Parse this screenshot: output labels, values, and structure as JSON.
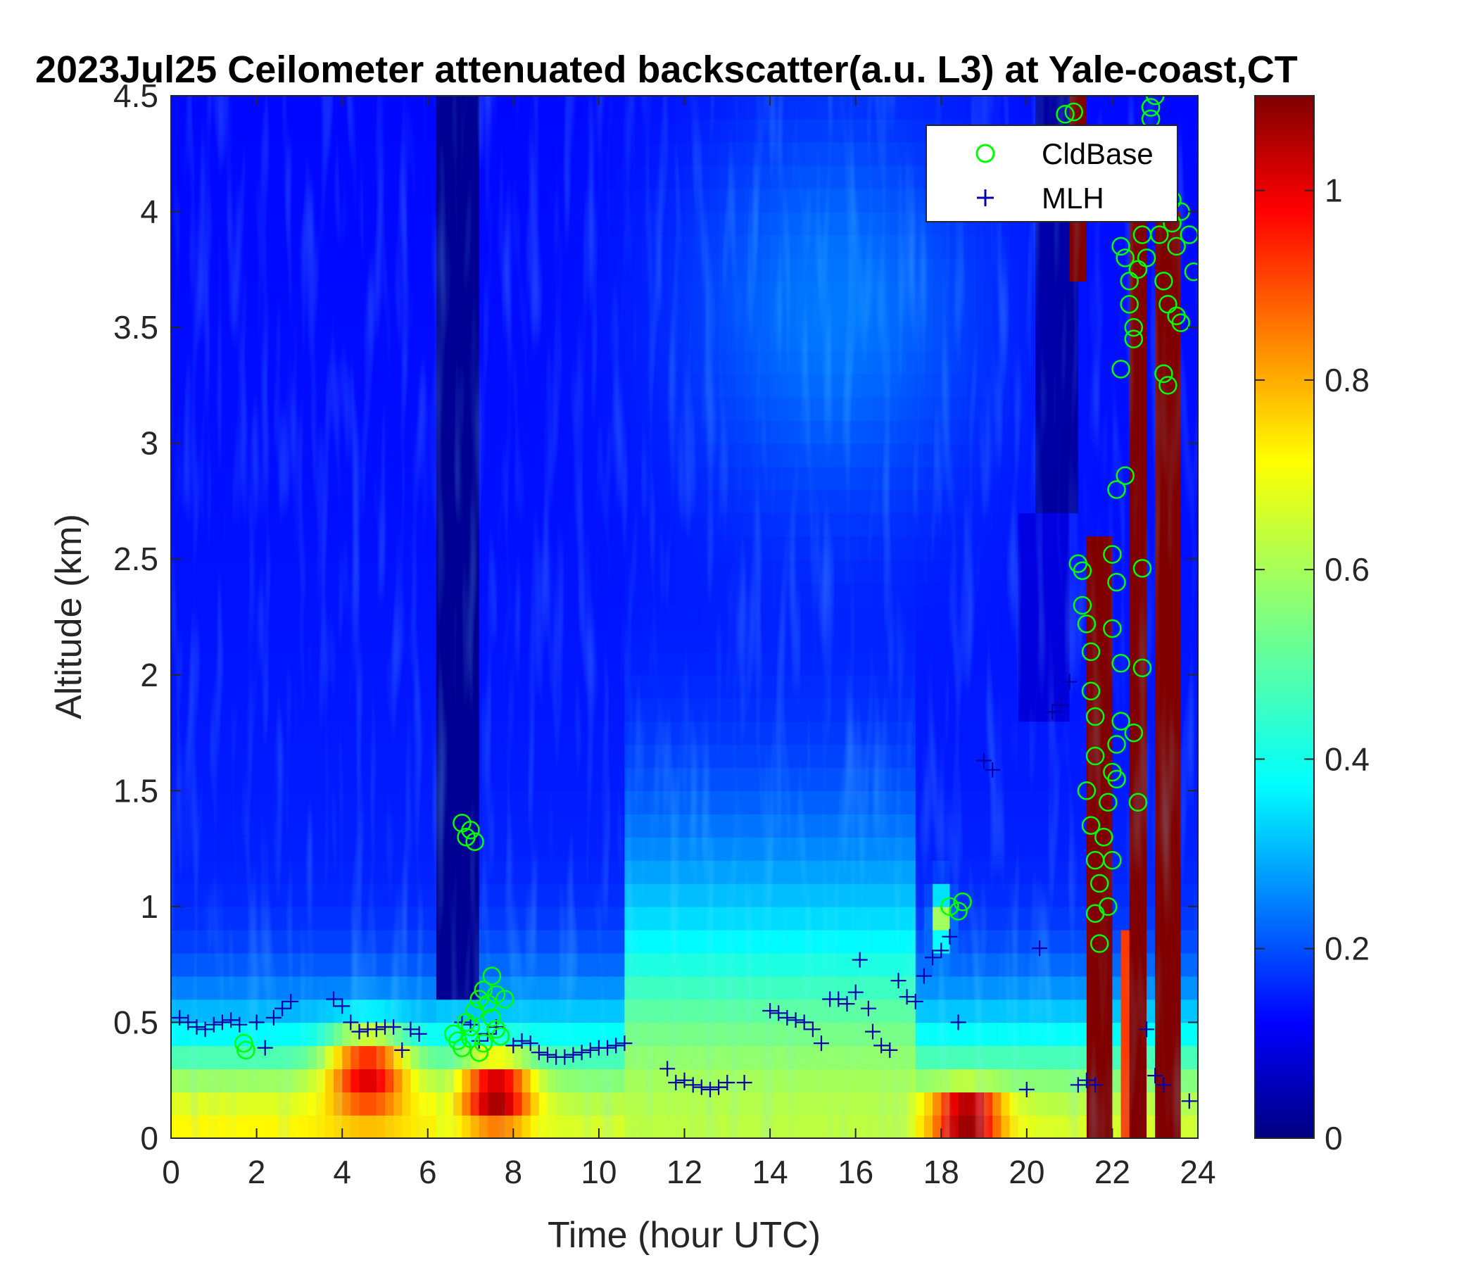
{
  "chart_data": {
    "type": "heatmap",
    "title": "2023Jul25 Ceilometer attenuated backscatter(a.u. L3) at Yale-coast,CT",
    "xlabel": "Time (hour UTC)",
    "ylabel": "Altitude (km)",
    "xlim": [
      0,
      24
    ],
    "ylim": [
      0,
      4.5
    ],
    "x_ticks": [
      "0",
      "2",
      "4",
      "6",
      "8",
      "10",
      "12",
      "14",
      "16",
      "18",
      "20",
      "22",
      "24"
    ],
    "y_ticks": [
      "0",
      "0.5",
      "1",
      "1.5",
      "2",
      "2.5",
      "3",
      "3.5",
      "4",
      "4.5"
    ],
    "colorbar": {
      "colormap": "jet",
      "range": [
        0,
        1.1
      ],
      "ticks": [
        "0",
        "0.2",
        "0.4",
        "0.6",
        "0.8",
        "1"
      ]
    },
    "legend": {
      "position": "top-right",
      "entries": [
        {
          "label": "CldBase",
          "marker": "circle",
          "color": "#00ff00"
        },
        {
          "label": "MLH",
          "marker": "plus",
          "color": "#0000aa"
        }
      ]
    },
    "series": [
      {
        "name": "MLH",
        "marker": "plus",
        "points": [
          [
            0.2,
            0.52
          ],
          [
            0.4,
            0.5
          ],
          [
            0.6,
            0.48
          ],
          [
            0.8,
            0.47
          ],
          [
            1.0,
            0.49
          ],
          [
            1.2,
            0.5
          ],
          [
            1.4,
            0.51
          ],
          [
            1.6,
            0.49
          ],
          [
            2.0,
            0.5
          ],
          [
            2.2,
            0.39
          ],
          [
            2.4,
            0.52
          ],
          [
            2.6,
            0.56
          ],
          [
            2.8,
            0.59
          ],
          [
            3.8,
            0.6
          ],
          [
            4.0,
            0.57
          ],
          [
            4.2,
            0.5
          ],
          [
            4.4,
            0.46
          ],
          [
            4.6,
            0.47
          ],
          [
            4.8,
            0.47
          ],
          [
            5.0,
            0.48
          ],
          [
            5.2,
            0.48
          ],
          [
            5.4,
            0.38
          ],
          [
            5.6,
            0.47
          ],
          [
            5.8,
            0.45
          ],
          [
            6.8,
            0.5
          ],
          [
            7.0,
            0.49
          ],
          [
            7.2,
            0.42
          ],
          [
            7.4,
            0.45
          ],
          [
            7.6,
            0.48
          ],
          [
            8.0,
            0.4
          ],
          [
            8.2,
            0.42
          ],
          [
            8.4,
            0.41
          ],
          [
            8.6,
            0.37
          ],
          [
            8.8,
            0.36
          ],
          [
            9.0,
            0.35
          ],
          [
            9.2,
            0.35
          ],
          [
            9.4,
            0.36
          ],
          [
            9.6,
            0.37
          ],
          [
            9.8,
            0.38
          ],
          [
            10.0,
            0.39
          ],
          [
            10.2,
            0.39
          ],
          [
            10.4,
            0.4
          ],
          [
            10.6,
            0.41
          ],
          [
            11.6,
            0.3
          ],
          [
            11.8,
            0.24
          ],
          [
            12.0,
            0.25
          ],
          [
            12.2,
            0.23
          ],
          [
            12.4,
            0.22
          ],
          [
            12.6,
            0.21
          ],
          [
            12.8,
            0.22
          ],
          [
            13.0,
            0.24
          ],
          [
            13.4,
            0.24
          ],
          [
            14.0,
            0.55
          ],
          [
            14.2,
            0.54
          ],
          [
            14.4,
            0.52
          ],
          [
            14.6,
            0.51
          ],
          [
            14.8,
            0.5
          ],
          [
            15.0,
            0.47
          ],
          [
            15.2,
            0.41
          ],
          [
            15.4,
            0.6
          ],
          [
            15.6,
            0.6
          ],
          [
            15.8,
            0.58
          ],
          [
            16.0,
            0.63
          ],
          [
            16.1,
            0.77
          ],
          [
            16.3,
            0.56
          ],
          [
            16.4,
            0.46
          ],
          [
            16.6,
            0.4
          ],
          [
            16.8,
            0.38
          ],
          [
            17.0,
            0.68
          ],
          [
            17.2,
            0.61
          ],
          [
            17.4,
            0.59
          ],
          [
            17.6,
            0.7
          ],
          [
            17.8,
            0.78
          ],
          [
            18.0,
            0.81
          ],
          [
            18.2,
            0.87
          ],
          [
            18.4,
            0.5
          ],
          [
            19.0,
            1.63
          ],
          [
            19.2,
            1.59
          ],
          [
            20.0,
            0.21
          ],
          [
            20.3,
            0.82
          ],
          [
            20.6,
            1.84
          ],
          [
            20.8,
            1.87
          ],
          [
            21.0,
            1.97
          ],
          [
            21.2,
            0.23
          ],
          [
            21.4,
            0.25
          ],
          [
            21.6,
            0.23
          ],
          [
            22.8,
            0.47
          ],
          [
            23.0,
            0.27
          ],
          [
            23.2,
            0.23
          ],
          [
            23.8,
            0.16
          ]
        ]
      },
      {
        "name": "CldBase",
        "marker": "circle",
        "points": [
          [
            1.7,
            0.41
          ],
          [
            1.75,
            0.38
          ],
          [
            6.8,
            1.36
          ],
          [
            7.0,
            1.33
          ],
          [
            6.9,
            1.3
          ],
          [
            7.1,
            1.28
          ],
          [
            6.6,
            0.45
          ],
          [
            6.7,
            0.42
          ],
          [
            6.8,
            0.39
          ],
          [
            6.9,
            0.5
          ],
          [
            7.0,
            0.48
          ],
          [
            7.1,
            0.55
          ],
          [
            7.2,
            0.6
          ],
          [
            7.3,
            0.64
          ],
          [
            7.4,
            0.58
          ],
          [
            7.5,
            0.52
          ],
          [
            7.6,
            0.47
          ],
          [
            7.7,
            0.44
          ],
          [
            7.3,
            0.41
          ],
          [
            7.2,
            0.37
          ],
          [
            7.5,
            0.7
          ],
          [
            7.6,
            0.62
          ],
          [
            7.8,
            0.6
          ],
          [
            7.0,
            0.43
          ],
          [
            18.2,
            1.0
          ],
          [
            18.4,
            0.98
          ],
          [
            18.5,
            1.02
          ],
          [
            20.9,
            4.42
          ],
          [
            21.1,
            4.43
          ],
          [
            21.2,
            2.48
          ],
          [
            21.3,
            2.45
          ],
          [
            21.3,
            2.3
          ],
          [
            21.4,
            2.22
          ],
          [
            21.5,
            2.1
          ],
          [
            21.5,
            1.93
          ],
          [
            21.6,
            1.82
          ],
          [
            21.6,
            1.65
          ],
          [
            21.4,
            1.5
          ],
          [
            21.5,
            1.35
          ],
          [
            21.6,
            1.2
          ],
          [
            21.7,
            1.1
          ],
          [
            21.6,
            0.97
          ],
          [
            21.7,
            0.84
          ],
          [
            21.8,
            1.3
          ],
          [
            21.9,
            1.45
          ],
          [
            22.0,
            1.58
          ],
          [
            22.1,
            1.7
          ],
          [
            21.9,
            1.0
          ],
          [
            22.0,
            1.2
          ],
          [
            22.1,
            1.55
          ],
          [
            22.2,
            1.8
          ],
          [
            22.0,
            2.2
          ],
          [
            22.1,
            2.4
          ],
          [
            22.0,
            2.52
          ],
          [
            22.2,
            2.05
          ],
          [
            22.1,
            2.8
          ],
          [
            22.3,
            2.86
          ],
          [
            22.5,
            1.75
          ],
          [
            22.6,
            1.45
          ],
          [
            22.7,
            2.46
          ],
          [
            22.7,
            2.03
          ],
          [
            22.2,
            3.32
          ],
          [
            22.2,
            3.85
          ],
          [
            22.3,
            3.8
          ],
          [
            22.4,
            3.7
          ],
          [
            22.4,
            3.6
          ],
          [
            22.5,
            3.5
          ],
          [
            22.5,
            3.45
          ],
          [
            22.6,
            3.75
          ],
          [
            22.7,
            3.9
          ],
          [
            22.6,
            4.0
          ],
          [
            22.8,
            3.8
          ],
          [
            22.9,
            4.45
          ],
          [
            23.0,
            4.5
          ],
          [
            22.9,
            4.4
          ],
          [
            23.1,
            3.9
          ],
          [
            23.2,
            3.7
          ],
          [
            23.3,
            3.6
          ],
          [
            23.2,
            3.3
          ],
          [
            23.3,
            3.25
          ],
          [
            23.4,
            3.95
          ],
          [
            23.5,
            3.85
          ],
          [
            23.6,
            4.0
          ],
          [
            23.5,
            3.55
          ],
          [
            23.6,
            3.52
          ],
          [
            23.8,
            3.9
          ],
          [
            23.9,
            3.74
          ],
          [
            23.4,
            4.05
          ]
        ]
      }
    ]
  }
}
